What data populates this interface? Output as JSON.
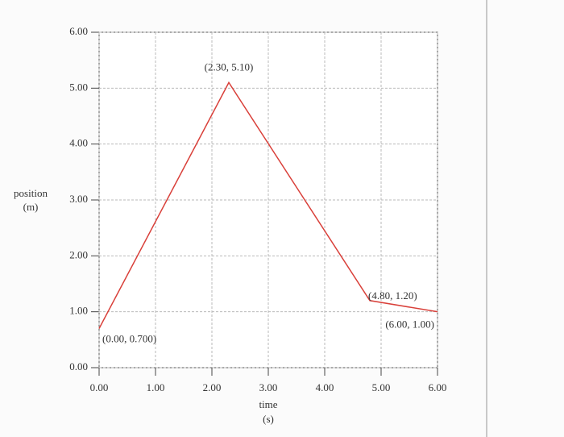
{
  "chart_data": {
    "type": "line",
    "x_label": "time",
    "x_unit": "(s)",
    "y_label": "position",
    "y_unit": "(m)",
    "x": [
      0,
      2.3,
      4.8,
      6.0
    ],
    "series": [
      {
        "color": "#d9403a",
        "values": [
          0.7,
          5.1,
          1.2,
          1.0
        ]
      }
    ],
    "annotations": [
      "(0.00, 0.700)",
      "(2.30, 5.10)",
      "(4.80, 1.20)",
      "(6.00, 1.00)"
    ],
    "xlim": [
      0,
      6
    ],
    "ylim": [
      0,
      6
    ],
    "xticks": [
      {
        "value": 0,
        "label": "0.00"
      },
      {
        "value": 1,
        "label": "1.00"
      },
      {
        "value": 2,
        "label": "2.00"
      },
      {
        "value": 3,
        "label": "3.00"
      },
      {
        "value": 4,
        "label": "4.00"
      },
      {
        "value": 5,
        "label": "5.00"
      },
      {
        "value": 6,
        "label": "6.00"
      }
    ],
    "yticks": [
      {
        "value": 0,
        "label": "0.00"
      },
      {
        "value": 1,
        "label": "1.00"
      },
      {
        "value": 2,
        "label": "2.00"
      },
      {
        "value": 3,
        "label": "3.00"
      },
      {
        "value": 4,
        "label": "4.00"
      },
      {
        "value": 5,
        "label": "5.00"
      },
      {
        "value": 6,
        "label": "6.00"
      }
    ],
    "grid": true
  }
}
